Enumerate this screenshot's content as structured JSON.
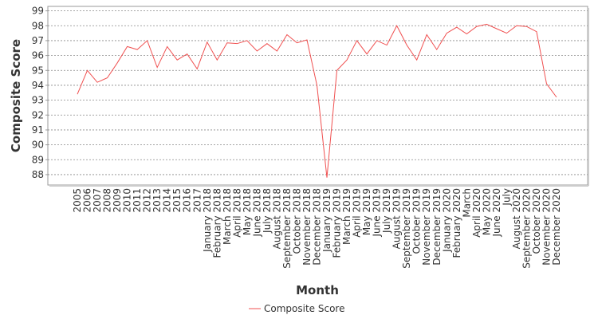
{
  "chart_data": {
    "type": "line",
    "x_label": "Month",
    "y_label": "Composite Score",
    "categories": [
      "2005",
      "2006",
      "2007",
      "2008",
      "2009",
      "2010",
      "2011",
      "2012",
      "2013",
      "2014",
      "2015",
      "2016",
      "2017",
      "January 2018",
      "February 2018",
      "March 2018",
      "April 2018",
      "May 2018",
      "June 2018",
      "July 2018",
      "August 2018",
      "September 2018",
      "October 2018",
      "November 2018",
      "December 2018",
      "January 2019",
      "February 2019",
      "March 2019",
      "April 2019",
      "May 2019",
      "June 2019",
      "July 2019",
      "August 2019",
      "September 2019",
      "October 2019",
      "November 2019",
      "December 2019",
      "January 2020",
      "February 2020",
      "March",
      "April 2020",
      "May 2020",
      "June 2020",
      "July",
      "August 2020",
      "September 2020",
      "October 2020",
      "November 2020",
      "December 2020"
    ],
    "series": [
      {
        "name": "Composite Score",
        "color": "#f05050",
        "values": [
          93.4,
          95.0,
          94.2,
          94.5,
          95.5,
          96.6,
          96.4,
          97.0,
          95.2,
          96.6,
          95.7,
          96.1,
          95.1,
          96.9,
          95.7,
          96.85,
          96.8,
          97.0,
          96.3,
          96.8,
          96.3,
          97.4,
          96.85,
          97.05,
          94.0,
          87.8,
          95.0,
          95.7,
          97.0,
          96.1,
          97.0,
          96.7,
          98.0,
          96.7,
          95.7,
          97.4,
          96.4,
          97.5,
          97.9,
          97.45,
          97.95,
          98.1,
          97.8,
          97.5,
          98.0,
          97.95,
          97.6,
          94.1,
          93.2
        ]
      }
    ],
    "ylim": [
      87.3,
      99.3
    ],
    "yticks": [
      88,
      89,
      90,
      91,
      92,
      93,
      94,
      95,
      96,
      97,
      98,
      99
    ],
    "grid": true,
    "legend": "bottom"
  }
}
